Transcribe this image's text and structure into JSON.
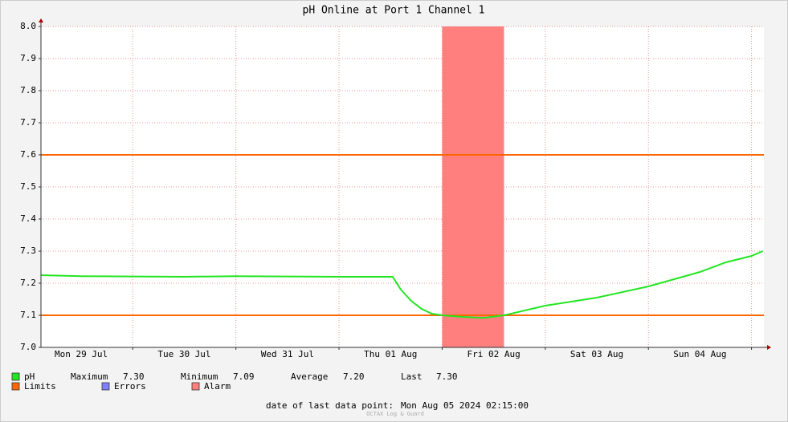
{
  "chart_data": {
    "type": "line",
    "title": "pH Online at Port 1 Channel 1",
    "x": [
      0.11,
      0.5,
      1.0,
      1.5,
      2.0,
      2.5,
      3.0,
      3.52,
      3.6,
      3.7,
      3.8,
      3.9,
      4.0,
      4.2,
      4.4,
      4.6,
      5.0,
      5.5,
      6.0,
      6.5,
      6.75,
      7.0,
      7.11
    ],
    "series": [
      {
        "name": "pH",
        "color": "#22e622",
        "values": [
          7.225,
          7.222,
          7.221,
          7.22,
          7.222,
          7.221,
          7.22,
          7.22,
          7.18,
          7.145,
          7.12,
          7.105,
          7.1,
          7.095,
          7.092,
          7.1,
          7.13,
          7.155,
          7.19,
          7.235,
          7.265,
          7.285,
          7.3
        ]
      }
    ],
    "xlim": [
      0.11,
      7.12
    ],
    "xticks": [
      {
        "value": 0.5,
        "label": "Mon 29 Jul"
      },
      {
        "value": 1.5,
        "label": "Tue 30 Jul"
      },
      {
        "value": 2.5,
        "label": "Wed 31 Jul"
      },
      {
        "value": 3.5,
        "label": "Thu 01 Aug"
      },
      {
        "value": 4.5,
        "label": "Fri 02 Aug"
      },
      {
        "value": 5.5,
        "label": "Sat 03 Aug"
      },
      {
        "value": 6.5,
        "label": "Sun 04 Aug"
      }
    ],
    "xgrid": [
      1,
      2,
      3,
      4,
      5,
      6,
      7
    ],
    "ylim": [
      7.0,
      8.0
    ],
    "yticks": [
      {
        "value": 7.0,
        "label": "7.0"
      },
      7.1,
      7.2,
      7.3,
      7.4,
      7.5,
      7.6,
      7.7,
      7.8,
      7.9,
      {
        "value": 8.0,
        "label": "8.0"
      }
    ],
    "grid": true,
    "limits": {
      "name": "Limits",
      "color": "#ff6600",
      "values": [
        7.6,
        7.1
      ]
    },
    "errors": {
      "name": "Errors",
      "color": "#7f7fff"
    },
    "alarm": {
      "name": "Alarm",
      "color": "#ff7f7f",
      "from": 4.0,
      "to": 4.6
    },
    "stats": [
      {
        "name": "Maximum",
        "value": 7.3,
        "label": "7.30"
      },
      {
        "name": "Minimum",
        "value": 7.09,
        "label": "7.09"
      },
      {
        "name": "Average",
        "value": 7.2,
        "label": "7.20"
      },
      {
        "name": "Last",
        "value": 7.3,
        "label": "7.30"
      }
    ],
    "footer": {
      "label": "date of last data point:",
      "value": "Mon Aug 05 2024 02:15:00"
    },
    "watermark": "OCTAX Log & Guard"
  }
}
